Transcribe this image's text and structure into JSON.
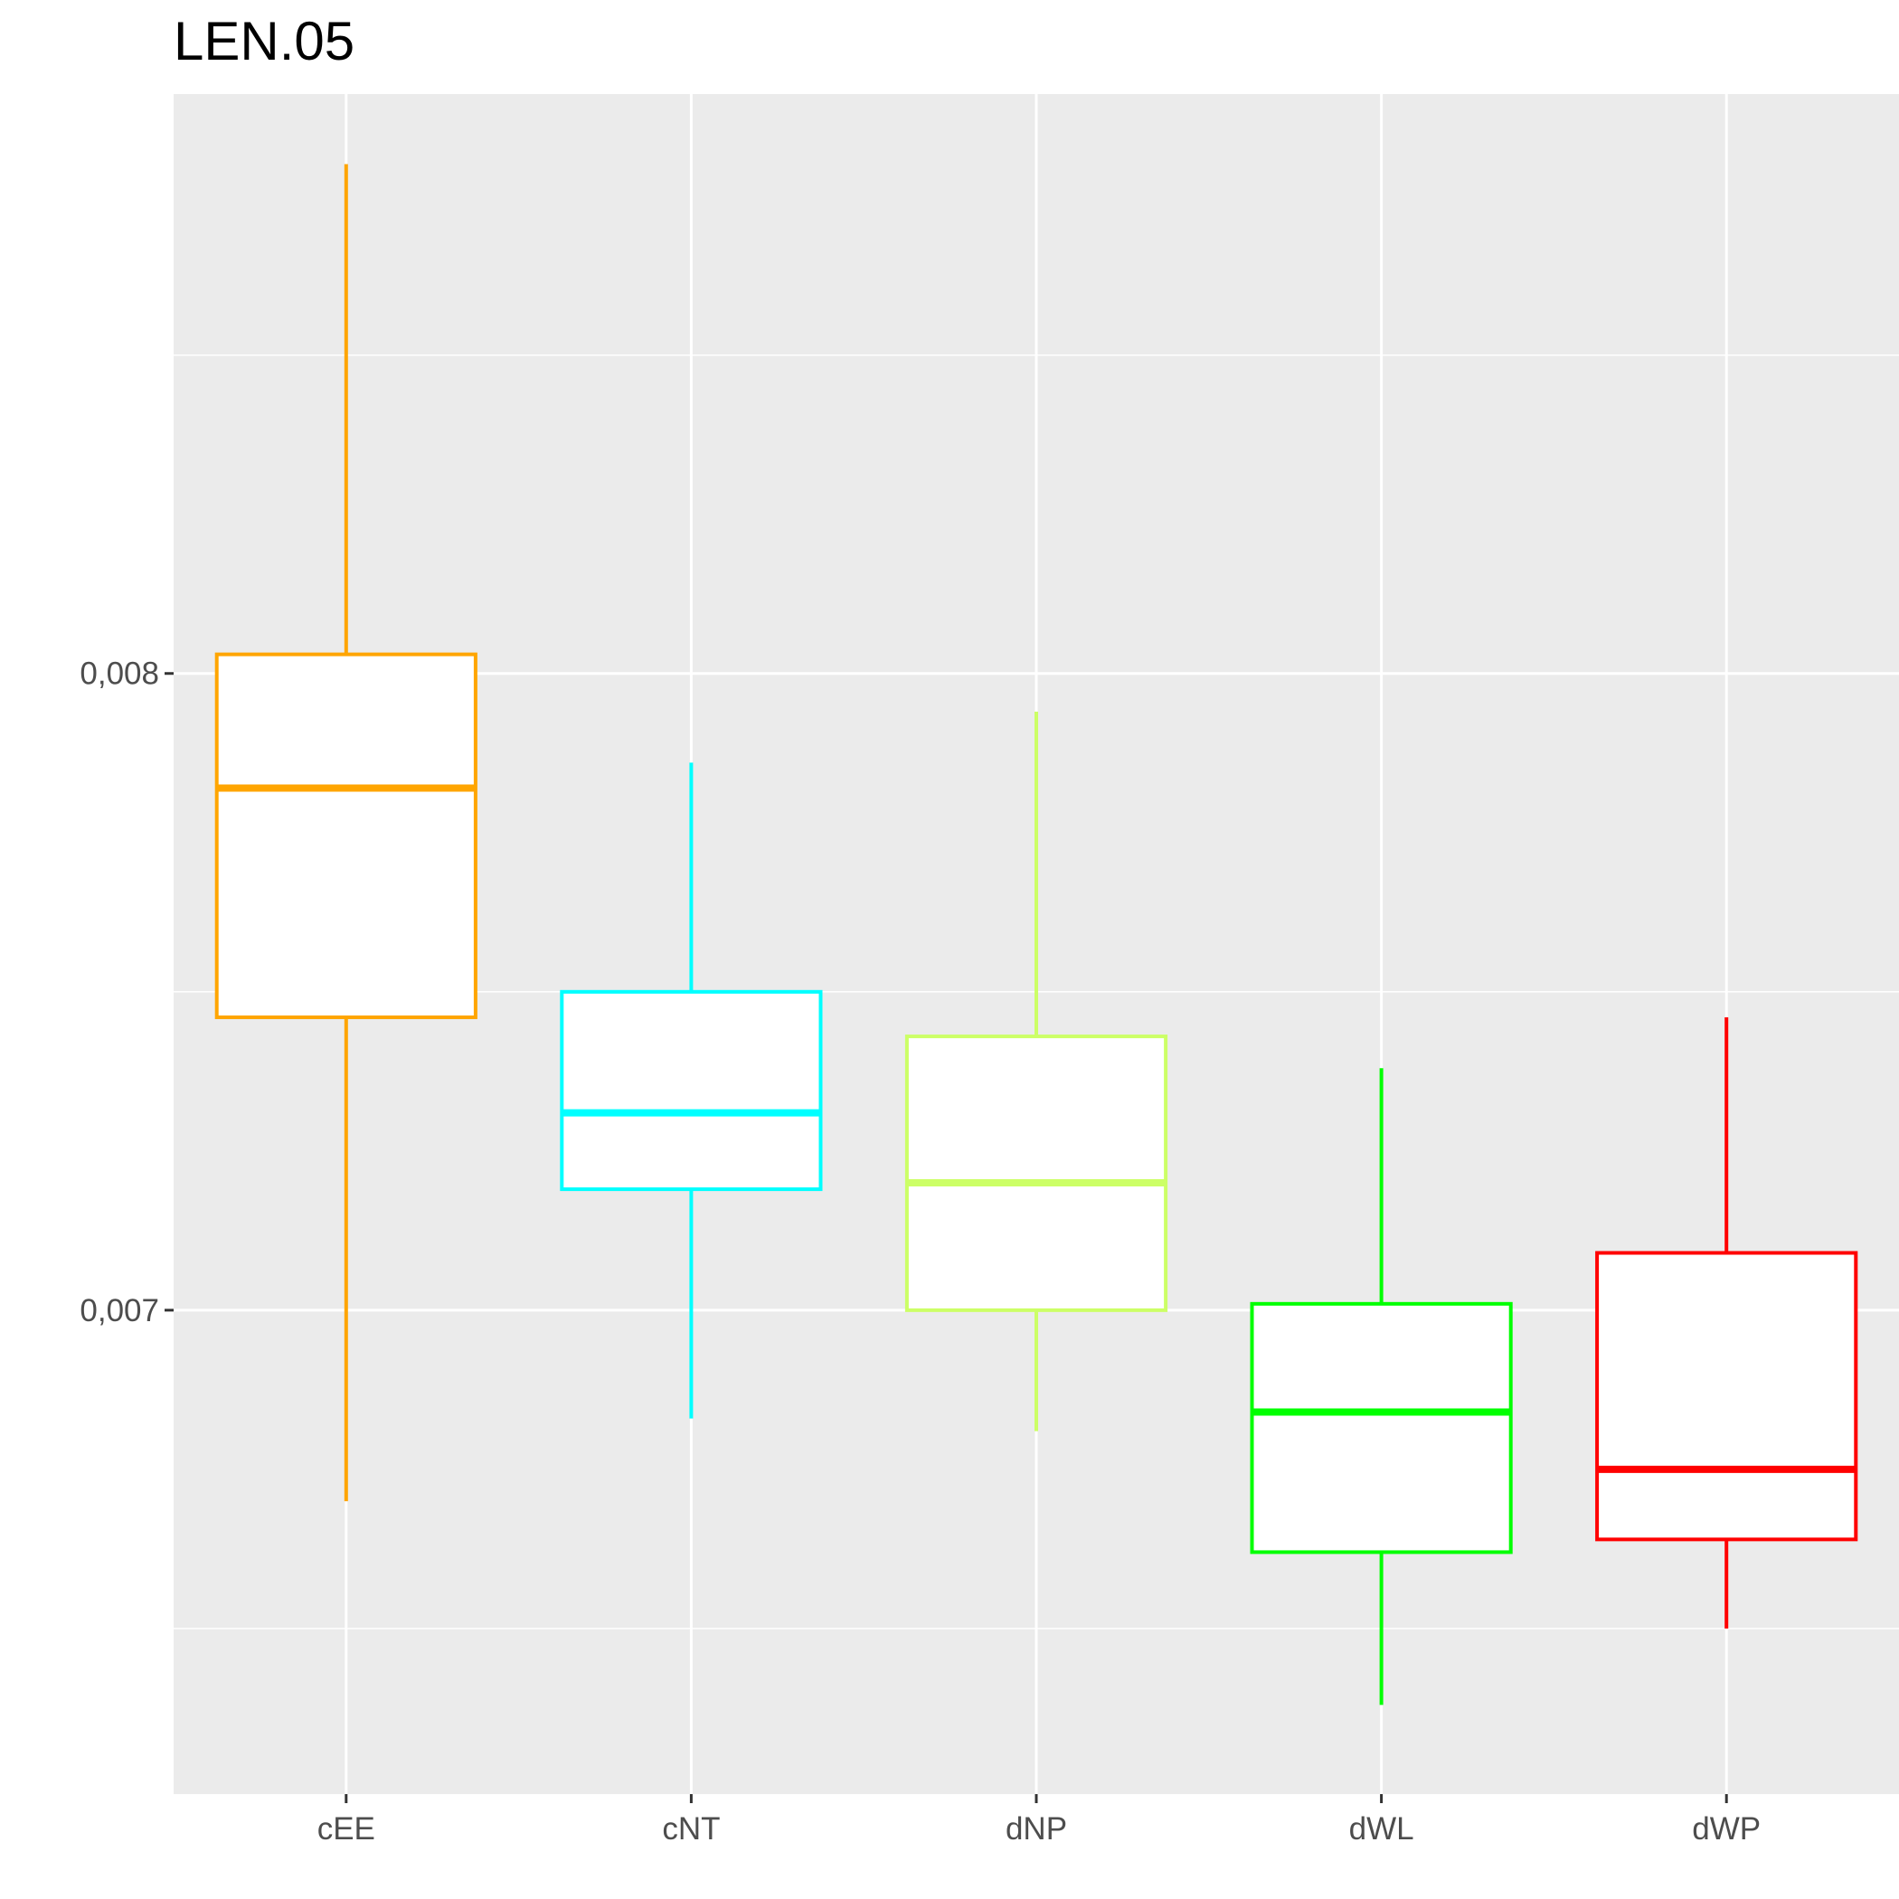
{
  "chart_data": {
    "type": "boxplot",
    "title": "LEN.05",
    "xlabel": "",
    "ylabel": "",
    "ylim": [
      0.00624,
      0.00891
    ],
    "y_major_ticks": [
      0.007,
      0.008
    ],
    "y_minor_ticks": [
      0.0065,
      0.0075,
      0.0085
    ],
    "y_tick_labels": [
      "0,007",
      "0,008"
    ],
    "grid": true,
    "legend": "none",
    "panel_background": "#ebebeb",
    "categories": [
      "cEE",
      "cNT",
      "dNP",
      "dWL",
      "dWP"
    ],
    "boxes": [
      {
        "category": "cEE",
        "color": "#ffa500",
        "min": 0.0067,
        "q1": 0.00746,
        "median": 0.00782,
        "q3": 0.00803,
        "max": 0.0088
      },
      {
        "category": "cNT",
        "color": "#00ffff",
        "min": 0.00683,
        "q1": 0.00719,
        "median": 0.00731,
        "q3": 0.0075,
        "max": 0.00786
      },
      {
        "category": "dNP",
        "color": "#ccff66",
        "min": 0.00681,
        "q1": 0.007,
        "median": 0.0072,
        "q3": 0.00743,
        "max": 0.00794
      },
      {
        "category": "dWL",
        "color": "#00ff00",
        "min": 0.00638,
        "q1": 0.00662,
        "median": 0.00684,
        "q3": 0.00701,
        "max": 0.00738
      },
      {
        "category": "dWP",
        "color": "#ff0000",
        "min": 0.0065,
        "q1": 0.00664,
        "median": 0.00675,
        "q3": 0.00709,
        "max": 0.00746
      }
    ]
  }
}
